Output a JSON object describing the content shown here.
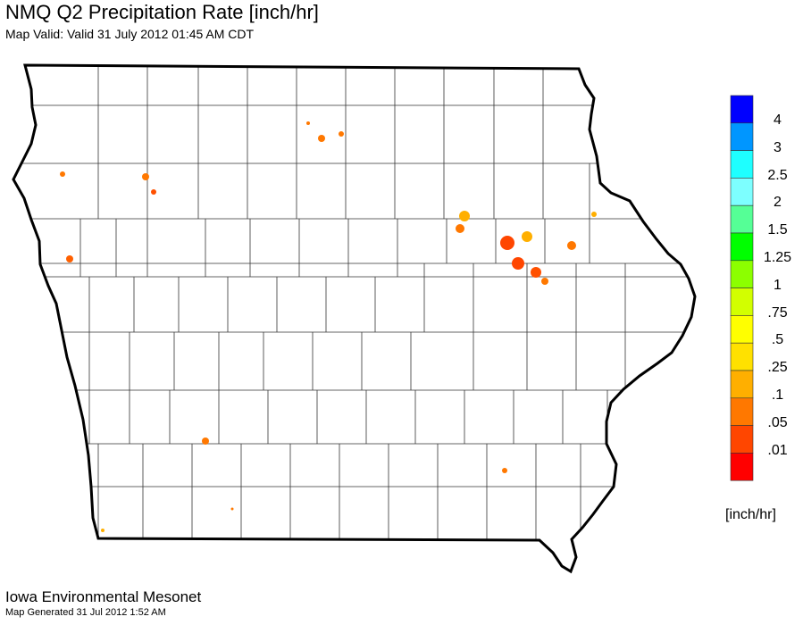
{
  "header": {
    "title": "NMQ Q2 Precipitation Rate [inch/hr]",
    "subtitle": "Map Valid: Valid 31 July 2012 01:45 AM CDT"
  },
  "footer": {
    "organization": "Iowa Environmental Mesonet",
    "generated": "Map Generated 31 Jul 2012 1:52 AM"
  },
  "legend": {
    "units": "[inch/hr]",
    "bins": [
      {
        "label": "4",
        "color": "#0000ff"
      },
      {
        "label": "3",
        "color": "#0096ff"
      },
      {
        "label": "2.5",
        "color": "#1effff"
      },
      {
        "label": "2",
        "color": "#7dffff"
      },
      {
        "label": "1.5",
        "color": "#55ff96"
      },
      {
        "label": "1.25",
        "color": "#00ff00"
      },
      {
        "label": "1",
        "color": "#8cff00"
      },
      {
        "label": ".75",
        "color": "#d2ff00"
      },
      {
        "label": ".5",
        "color": "#ffff00"
      },
      {
        "label": ".25",
        "color": "#ffe100"
      },
      {
        "label": ".1",
        "color": "#ffaf00"
      },
      {
        "label": ".05",
        "color": "#ff7800"
      },
      {
        "label": ".01",
        "color": "#ff4600"
      },
      {
        "label": "",
        "color": "#ff0000"
      }
    ]
  }
}
